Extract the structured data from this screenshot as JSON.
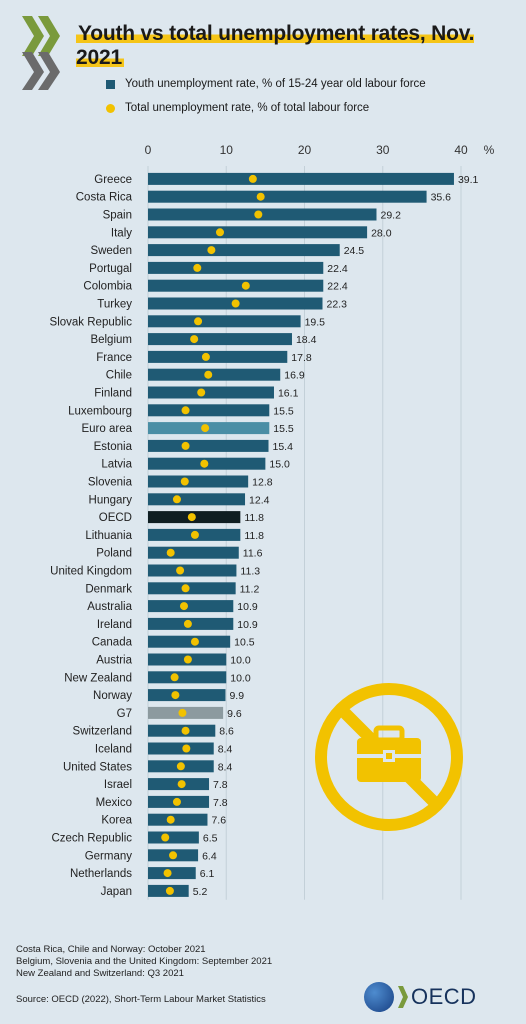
{
  "title": "Youth vs total unemployment rates, Nov. 2021",
  "legend": {
    "youth": "Youth unemployment rate, % of 15-24 year old labour force",
    "total": "Total unemployment rate, % of total labour force"
  },
  "axis_unit": "%",
  "colors": {
    "bar": "#1f5a74",
    "bar_euro": "#4a8ea5",
    "bar_oecd": "#0f1e22",
    "bar_g7": "#8c9a9f",
    "dot": "#f2c200",
    "accent": "#f5c518"
  },
  "chart_data": {
    "type": "bar",
    "orientation": "horizontal",
    "xlim": [
      0,
      40
    ],
    "xticks": [
      0,
      10,
      20,
      30,
      40
    ],
    "grid": true,
    "legend_position": "top",
    "categories": [
      "Greece",
      "Costa Rica",
      "Spain",
      "Italy",
      "Sweden",
      "Portugal",
      "Colombia",
      "Turkey",
      "Slovak Republic",
      "Belgium",
      "France",
      "Chile",
      "Finland",
      "Luxembourg",
      "Euro area",
      "Estonia",
      "Latvia",
      "Slovenia",
      "Hungary",
      "OECD",
      "Lithuania",
      "Poland",
      "United Kingdom",
      "Denmark",
      "Australia",
      "Ireland",
      "Canada",
      "Austria",
      "New Zealand",
      "Norway",
      "G7",
      "Switzerland",
      "Iceland",
      "United States",
      "Israel",
      "Mexico",
      "Korea",
      "Czech Republic",
      "Germany",
      "Netherlands",
      "Japan"
    ],
    "series": [
      {
        "name": "Youth unemployment rate, % of 15-24 year old labour force",
        "values": [
          39.1,
          35.6,
          29.2,
          28.0,
          24.5,
          22.4,
          22.4,
          22.3,
          19.5,
          18.4,
          17.8,
          16.9,
          16.1,
          15.5,
          15.5,
          15.4,
          15.0,
          12.8,
          12.4,
          11.8,
          11.8,
          11.6,
          11.3,
          11.2,
          10.9,
          10.9,
          10.5,
          10.0,
          10.0,
          9.9,
          9.6,
          8.6,
          8.4,
          8.4,
          7.8,
          7.8,
          7.6,
          6.5,
          6.4,
          6.1,
          5.2
        ],
        "labels": [
          "39.1",
          "35.6",
          "29.2",
          "28.0",
          "24.5",
          "22.4",
          "22.4",
          "22.3",
          "19.5",
          "18.4",
          "17.8",
          "16.9",
          "16.1",
          "15.5",
          "15.5",
          "15.4",
          "15.0",
          "12.8",
          "12.4",
          "11.8",
          "11.8",
          "11.6",
          "11.3",
          "11.2",
          "10.9",
          "10.9",
          "10.5",
          "10.0",
          "10.0",
          "9.9",
          "9.6",
          "8.6",
          "8.4",
          "8.4",
          "7.8",
          "7.8",
          "7.6",
          "6.5",
          "6.4",
          "6.1",
          "5.2"
        ]
      },
      {
        "name": "Total unemployment rate, % of total labour force",
        "values": [
          13.4,
          14.4,
          14.1,
          9.2,
          8.1,
          6.3,
          12.5,
          11.2,
          6.4,
          5.9,
          7.4,
          7.7,
          6.8,
          4.8,
          7.3,
          4.8,
          7.2,
          4.7,
          3.7,
          5.6,
          6.0,
          2.9,
          4.1,
          4.8,
          4.6,
          5.1,
          6.0,
          5.1,
          3.4,
          3.5,
          4.4,
          4.8,
          4.9,
          4.2,
          4.3,
          3.7,
          2.9,
          2.2,
          3.2,
          2.5,
          2.8
        ]
      }
    ]
  },
  "footer": {
    "note1": "Costa Rica, Chile and Norway: October 2021",
    "note2": "Belgium, Slovenia and the United Kingdom: September 2021",
    "note3": "New Zealand and Switzerland: Q3 2021",
    "source": "Source: OECD (2022), Short-Term Labour Market Statistics"
  },
  "brand": {
    "name": "OECD"
  },
  "icons": {
    "illustration": "no-briefcase-icon",
    "logo": "oecd-globe-icon"
  }
}
